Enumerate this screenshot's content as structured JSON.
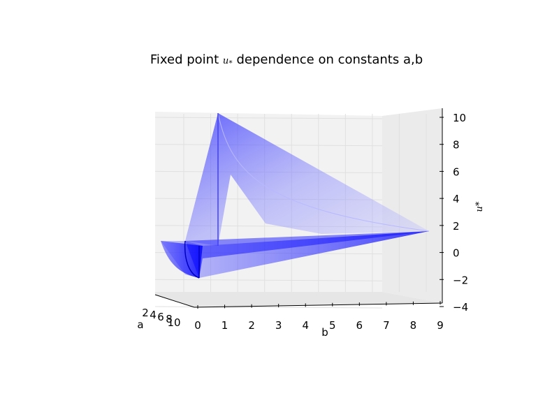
{
  "chart_data": {
    "type": "surface3d",
    "title": "Fixed point u* dependence on constants a,b",
    "title_text": "Fixed point ",
    "title_math": "u",
    "title_math_sub": "*",
    "title_rest": " dependence on constants a,b",
    "xlabel": "a",
    "ylabel": "b",
    "zlabel": "u*",
    "xlim": [
      1,
      10
    ],
    "ylim": [
      0,
      9
    ],
    "zlim": [
      -4,
      10
    ],
    "xticks": [
      "2",
      "4",
      "6",
      "8",
      "10"
    ],
    "yticks": [
      "0",
      "1",
      "2",
      "3",
      "4",
      "5",
      "6",
      "7",
      "8",
      "9"
    ],
    "zticks": [
      "10",
      "8",
      "6",
      "4",
      "2",
      "0",
      "−2",
      "−4"
    ],
    "grid": true,
    "surface_color": "#0000ff",
    "pane_color": "#f2f2f2",
    "grid_color": "#e0e0e0",
    "peak_value": 10,
    "ridge_end_value": 1.4,
    "min_value": -2
  }
}
